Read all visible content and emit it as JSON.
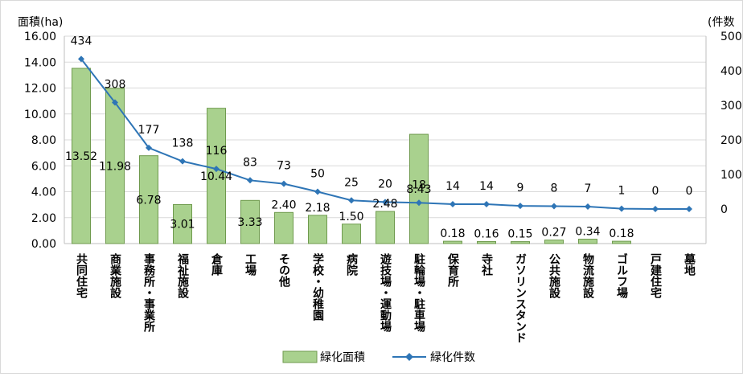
{
  "chart_data": {
    "type": "bar",
    "y_left_label": "面積(ha)",
    "y_right_label": "(件数",
    "categories": [
      "共同住宅",
      "商業施設",
      "事務所・事業所",
      "福祉施設",
      "倉庫",
      "工場",
      "その他",
      "学校・幼稚園",
      "病院",
      "遊技場・運動場",
      "駐輪場・駐車場",
      "保育所",
      "寺社",
      "ガソリンスタンド",
      "公共施設",
      "物流施設",
      "ゴルフ場",
      "戸建住宅",
      "墓地"
    ],
    "series": [
      {
        "name": "緑化面積",
        "type": "bar",
        "axis": "left",
        "color": "#a9d18e",
        "stroke": "#6f9a4e",
        "values": [
          13.52,
          11.98,
          6.78,
          3.01,
          10.44,
          3.33,
          2.4,
          2.18,
          1.5,
          2.48,
          8.43,
          0.18,
          0.16,
          0.15,
          0.27,
          0.34,
          0.18,
          0,
          0
        ],
        "labels": [
          "13.52",
          "11.98",
          "6.78",
          "3.01",
          "10.44",
          "3.33",
          "2.40",
          "2.18",
          "1.50",
          "2.48",
          "8.43",
          "0.18",
          "0.16",
          "0.15",
          "0.27",
          "0.34",
          "0.18",
          "",
          ""
        ]
      },
      {
        "name": "緑化件数",
        "type": "line",
        "axis": "right",
        "color": "#2e75b6",
        "values": [
          434,
          308,
          177,
          138,
          116,
          83,
          73,
          50,
          25,
          20,
          18,
          14,
          14,
          9,
          8,
          7,
          1,
          0,
          0
        ]
      }
    ],
    "y_left": {
      "min": 0,
      "max": 16,
      "ticks": [
        "0.00",
        "2.00",
        "4.00",
        "6.00",
        "8.00",
        "10.00",
        "12.00",
        "14.00",
        "16.00"
      ]
    },
    "y_right": {
      "min": -100,
      "max": 500,
      "ticks": [
        "0",
        "100",
        "200",
        "300",
        "400",
        "500"
      ]
    },
    "grid": true,
    "legend_position": "bottom"
  }
}
